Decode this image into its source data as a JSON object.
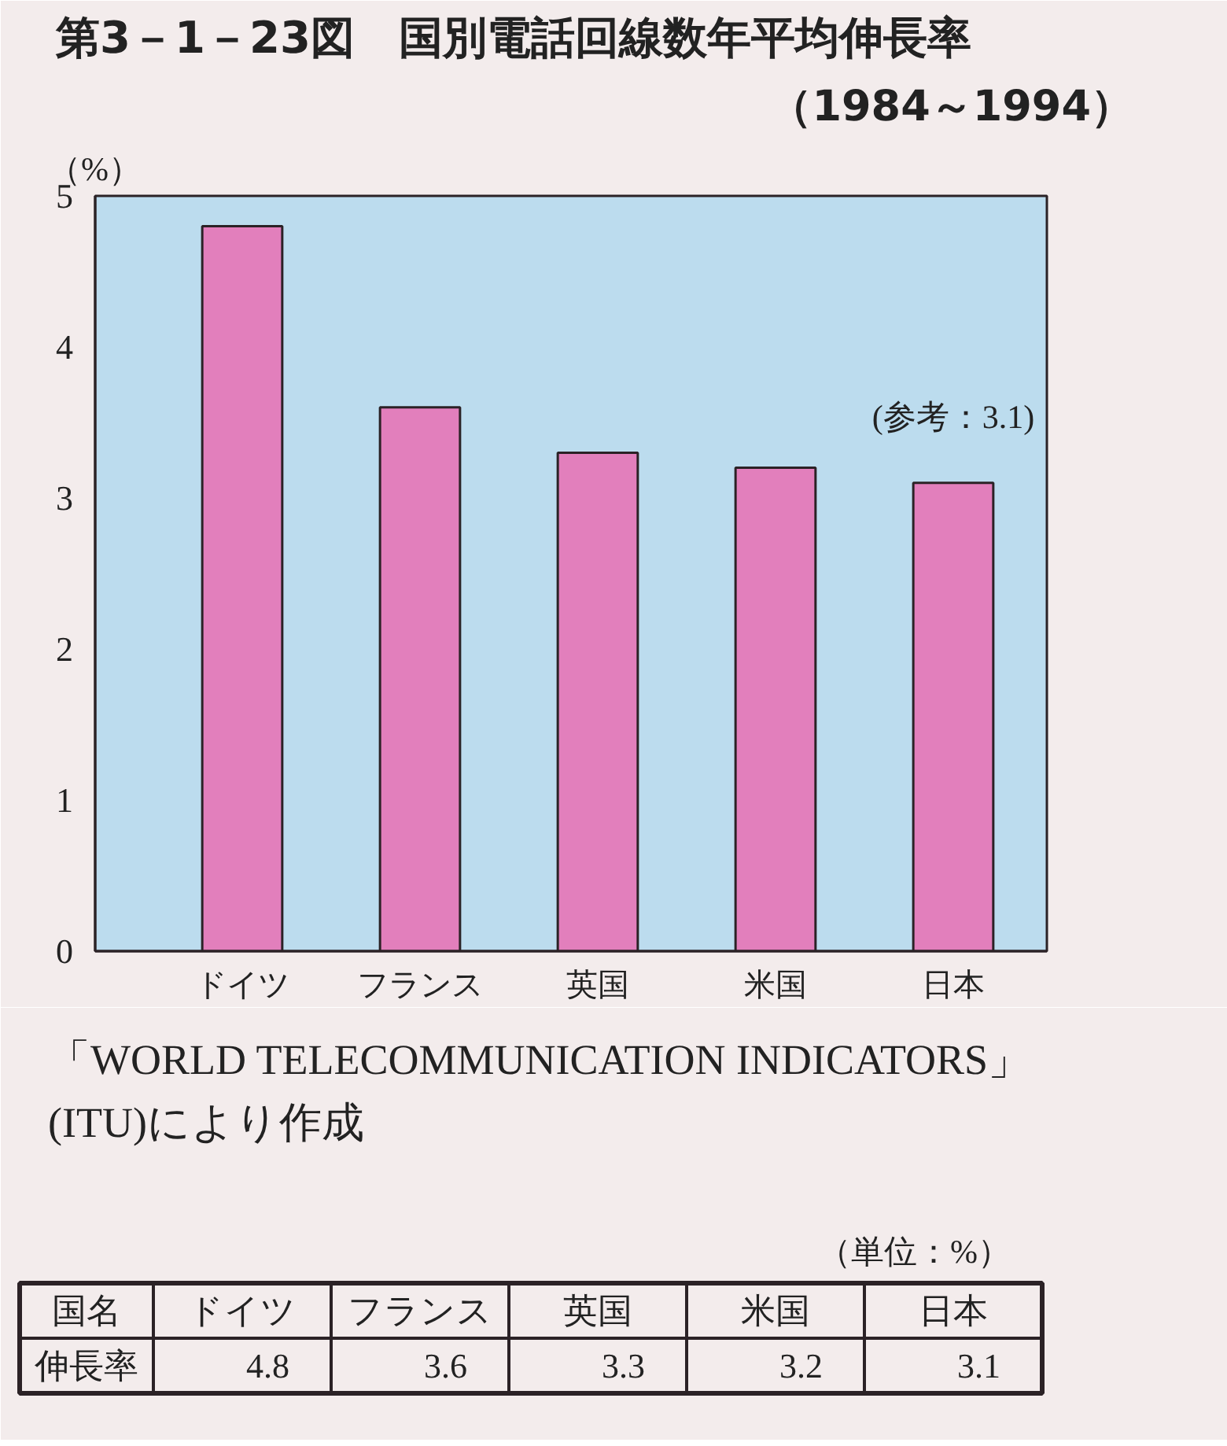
{
  "chart_data": {
    "type": "bar",
    "title": "第3－1－23図　国別電話回線数年平均伸長率",
    "subtitle": "（1984～1994）",
    "ylabel": "（%）",
    "categories": [
      "ドイツ",
      "フランス",
      "英国",
      "米国",
      "日本"
    ],
    "values": [
      4.8,
      3.6,
      3.3,
      3.2,
      3.1
    ],
    "data_labels": true,
    "color": "#e27fbc",
    "ylim": [
      0,
      5
    ],
    "yticks": [
      0,
      1,
      2,
      3,
      4,
      5
    ],
    "grid": false,
    "annotations": [
      {
        "text": "(参考：3.1)",
        "x": "日本",
        "y": 3.1
      },
      "「WORLD TELECOMMUNICATION INDICATORS」",
      "(ITU)により作成",
      "（単位：%）",
      "国名",
      "伸長率"
    ]
  }
}
